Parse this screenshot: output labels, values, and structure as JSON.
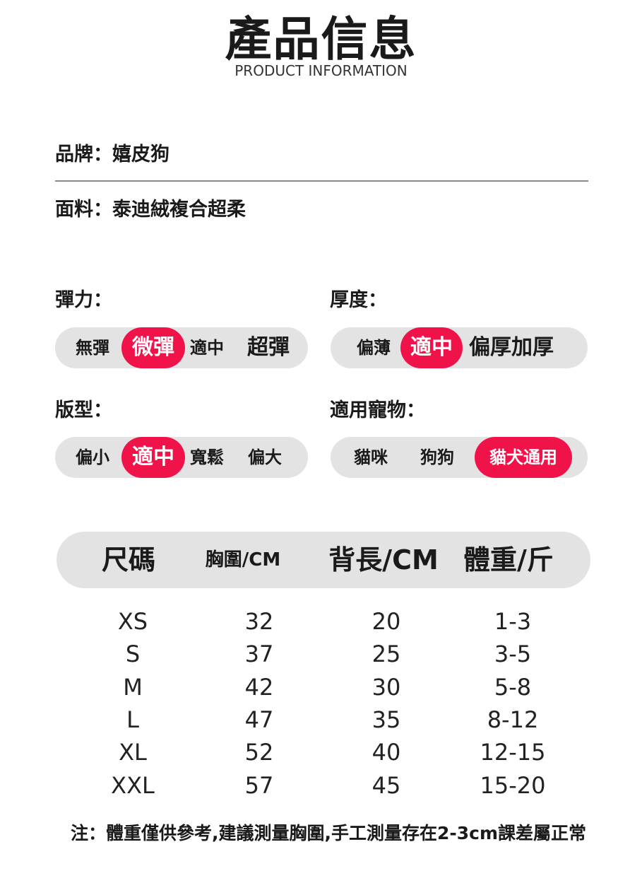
{
  "header": {
    "title": "產品信息",
    "subtitle": "PRODUCT INFORMATION"
  },
  "info": {
    "brand": "品牌：嬉皮狗",
    "fabric": "面料：泰迪絨複合超柔"
  },
  "colors": {
    "accent": "#f0134a",
    "pill_bg": "#e3e3e3"
  },
  "attributes": [
    {
      "label": "彈力：",
      "options": [
        "無彈",
        "微彈",
        "適中",
        "超彈"
      ],
      "selected": "微彈"
    },
    {
      "label": "厚度：",
      "options": [
        "偏薄",
        "適中",
        "偏厚加厚"
      ],
      "selected": "適中"
    },
    {
      "label": "版型：",
      "options": [
        "偏小",
        "適中",
        "寬鬆",
        "偏大"
      ],
      "selected": "適中"
    },
    {
      "label": "適用寵物：",
      "options": [
        "貓咪",
        "狗狗",
        "貓犬通用"
      ],
      "selected": "貓犬通用"
    }
  ],
  "size_table": {
    "headers": [
      "尺碼",
      "胸圍/CM",
      "背長/CM",
      "體重/斤"
    ],
    "rows": [
      [
        "XS",
        "32",
        "20",
        "1-3"
      ],
      [
        "S",
        "37",
        "25",
        "3-5"
      ],
      [
        "M",
        "42",
        "30",
        "5-8"
      ],
      [
        "L",
        "47",
        "35",
        "8-12"
      ],
      [
        "XL",
        "52",
        "40",
        "12-15"
      ],
      [
        "XXL",
        "57",
        "45",
        "15-20"
      ]
    ]
  },
  "note": "注：體重僅供參考,建議測量胸圍,手工測量存在2-3cm課差屬正常"
}
